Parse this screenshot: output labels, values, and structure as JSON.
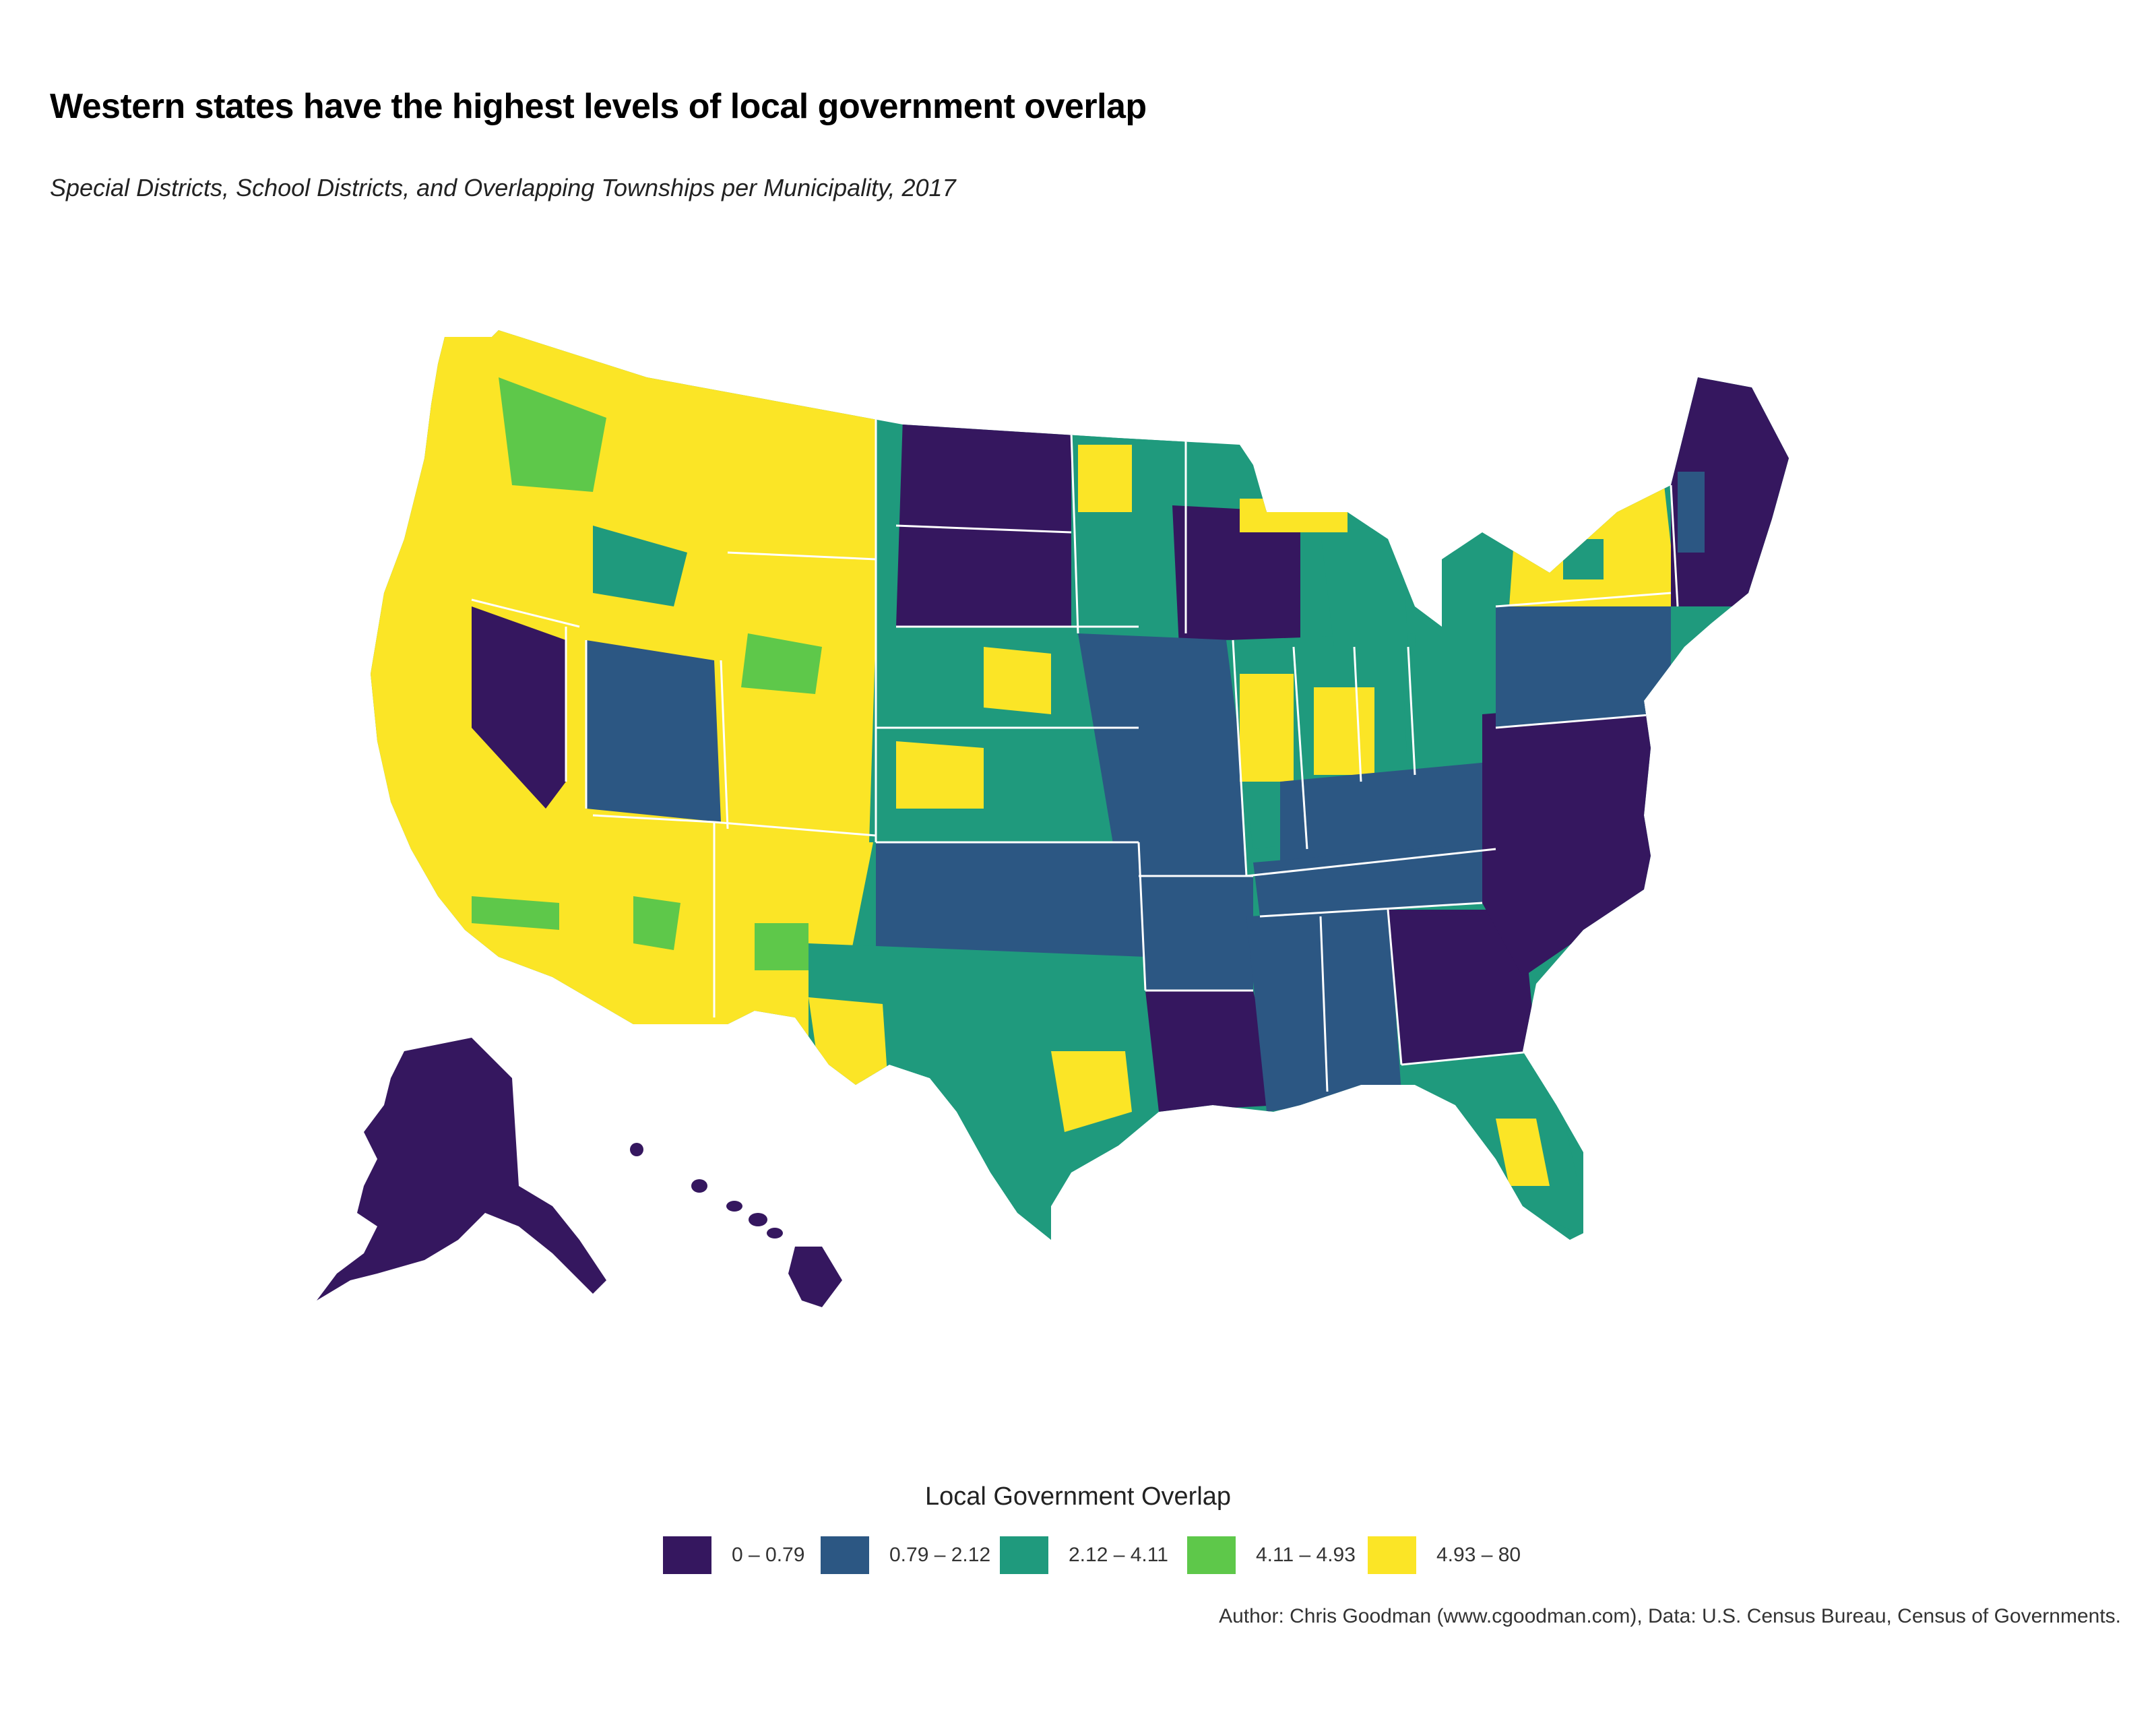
{
  "title": "Western states have the highest levels of local government overlap",
  "subtitle": "Special Districts, School Districts, and Overlapping Townships per Municipality, 2017",
  "legend": {
    "title": "Local Government Overlap",
    "items": [
      {
        "label": "0 – 0.79",
        "color": "#35175f"
      },
      {
        "label": "0.79 – 2.12",
        "color": "#2c5783"
      },
      {
        "label": "2.12 – 4.11",
        "color": "#1f9a7d"
      },
      {
        "label": "4.11 – 4.93",
        "color": "#5ec84a"
      },
      {
        "label": "4.93 – 80",
        "color": "#fbe526"
      }
    ]
  },
  "caption": "Author: Chris Goodman (www.cgoodman.com), Data: U.S. Census Bureau, Census of Governments.",
  "map_regions": [
    {
      "region": "Pacific Northwest (WA, OR)",
      "level": 5
    },
    {
      "region": "California",
      "level": 5
    },
    {
      "region": "Nevada",
      "level": 1
    },
    {
      "region": "Idaho / Montana / Wyoming",
      "level": 5
    },
    {
      "region": "Utah",
      "level": 2
    },
    {
      "region": "Arizona / New Mexico",
      "level": 5
    },
    {
      "region": "North & South Dakota",
      "level": 1
    },
    {
      "region": "Nebraska / Kansas / Colorado",
      "level": 3
    },
    {
      "region": "Texas / Oklahoma",
      "level": 3
    },
    {
      "region": "Minnesota / Iowa / Missouri",
      "level": 2
    },
    {
      "region": "Wisconsin",
      "level": 1
    },
    {
      "region": "Louisiana",
      "level": 1
    },
    {
      "region": "Illinois / Indiana / Ohio / Michigan",
      "level": 3
    },
    {
      "region": "Southeast (MS, AL, GA, FL, TN, KY)",
      "level": 2
    },
    {
      "region": "Virginia / North Carolina / South Carolina",
      "level": 1
    },
    {
      "region": "Pennsylvania / Mid-Atlantic",
      "level": 2
    },
    {
      "region": "New York / Vermont",
      "level": 5
    },
    {
      "region": "New England (ME, NH, MA, CT)",
      "level": 1
    },
    {
      "region": "Alaska",
      "level": 1
    },
    {
      "region": "Hawaii",
      "level": 1
    }
  ]
}
